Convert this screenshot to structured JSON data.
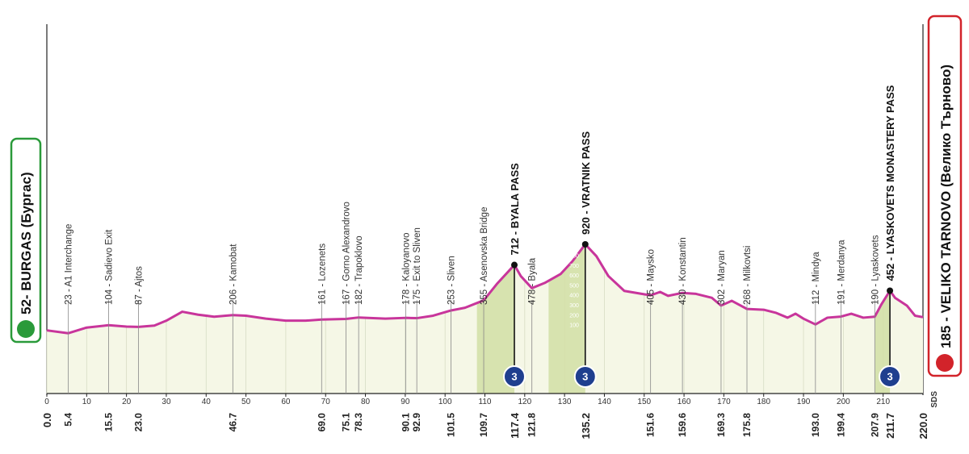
{
  "chart_data": {
    "type": "profile",
    "xlim": [
      0,
      220
    ],
    "xticks": [
      0,
      10,
      20,
      30,
      40,
      50,
      60,
      70,
      80,
      90,
      100,
      110,
      120,
      130,
      140,
      150,
      160,
      170,
      180,
      190,
      200,
      210
    ],
    "ylim": [
      -585,
      3140
    ],
    "yticks": [
      100,
      200,
      300,
      400,
      500,
      600,
      700,
      800
    ],
    "profile": {
      "color": "#c8359b",
      "x": [
        0,
        5.4,
        10,
        15.5,
        20,
        23,
        27,
        30,
        34,
        38,
        42,
        46.7,
        50,
        55,
        60,
        65,
        69,
        75.1,
        78.3,
        85,
        90.1,
        92.9,
        97,
        101.5,
        105,
        109.7,
        113,
        117.4,
        119,
        121.8,
        125,
        129,
        132,
        135.2,
        138,
        141,
        145,
        151.6,
        154,
        156,
        159.6,
        163,
        167,
        169.3,
        172,
        175.8,
        180,
        183,
        186,
        188,
        190,
        193,
        196,
        199.4,
        202,
        205,
        207.9,
        209.5,
        211.7,
        213,
        216,
        218,
        220
      ],
      "y": [
        52,
        23,
        80,
        104,
        90,
        87,
        100,
        150,
        240,
        210,
        190,
        206,
        200,
        170,
        150,
        150,
        161,
        167,
        182,
        170,
        178,
        175,
        200,
        253,
        280,
        355,
        520,
        712,
        600,
        478,
        530,
        620,
        750,
        920,
        800,
        600,
        450,
        405,
        440,
        400,
        430,
        420,
        380,
        302,
        350,
        268,
        260,
        230,
        180,
        220,
        170,
        112,
        180,
        191,
        220,
        180,
        190,
        310,
        452,
        380,
        300,
        200,
        185
      ]
    },
    "start": {
      "km": {
        "value": 0,
        "label": "0.0"
      },
      "label": "52- BURGAS (Бургас)"
    },
    "finish": {
      "km": {
        "value": 220,
        "label": "220.0"
      },
      "label": "185 - VELIKO TARNOVO (Велико Търново)"
    },
    "waypoints": [
      {
        "km": 5.4,
        "label": "23 - A1 Interchange"
      },
      {
        "km": 15.5,
        "label": "104 - Sadievo Exit"
      },
      {
        "km": {
          "value": 23,
          "label": "23.0"
        },
        "label": "87 - Ajtos"
      },
      {
        "km": 46.7,
        "label": "206 - Kamobat"
      },
      {
        "km": {
          "value": 69,
          "label": "69.0"
        },
        "label": "161 - Lozenets"
      },
      {
        "km": 75.1,
        "label": "167 - Gorno Alexandrovo"
      },
      {
        "km": 78.3,
        "label": "182 - Trapoklovo"
      },
      {
        "km": 90.1,
        "label": "178 - Kaloyanovo"
      },
      {
        "km": 92.9,
        "label": "175 - Exit to Sliven"
      },
      {
        "km": 101.5,
        "label": "253 - Sliven"
      },
      {
        "km": 109.7,
        "label": "355 - Asenovska Bridge"
      },
      {
        "km": 121.8,
        "label": "478 - Byala"
      },
      {
        "km": 151.6,
        "label": "405 - Maysko"
      },
      {
        "km": 159.6,
        "label": "430 - Konstantin"
      },
      {
        "km": 169.3,
        "label": "302 - Maryan"
      },
      {
        "km": 175.8,
        "label": "268 - Milkovtsi"
      },
      {
        "km": {
          "value": 193,
          "label": "193.0"
        },
        "label": "112 - Mindya"
      },
      {
        "km": 199.4,
        "label": "191 - Merdanya"
      },
      {
        "km": 207.9,
        "label": "190 - Lyaskovets"
      }
    ],
    "climbs": [
      {
        "km": 117.4,
        "elevation": 712,
        "start": 108,
        "label": "712 - BYALA PASS",
        "category": 3
      },
      {
        "km": 135.2,
        "elevation": 920,
        "start": 126,
        "label": "920 - VRATNIK PASS",
        "category": 3
      },
      {
        "km": 211.7,
        "elevation": 452,
        "start": 208,
        "label": "452 - LYASKOVETS MONASTERY PASS",
        "category": 3
      }
    ],
    "logo": "SDS"
  }
}
